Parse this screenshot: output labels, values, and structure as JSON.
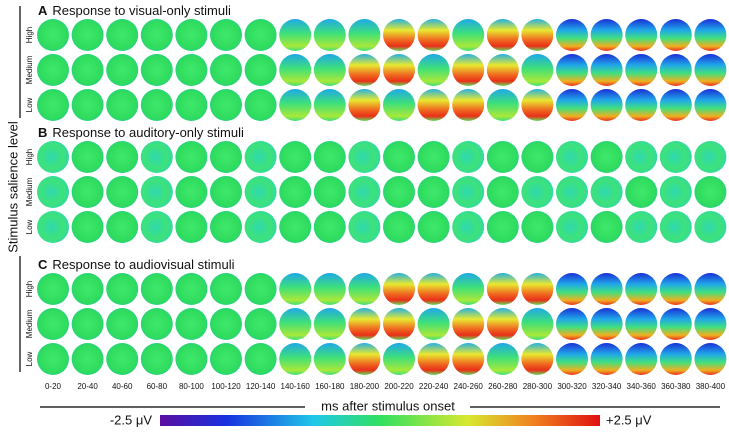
{
  "panels": [
    {
      "letter": "A",
      "title": "Response to visual-only stimuli",
      "rows": [
        "High",
        "Medium",
        "Low"
      ]
    },
    {
      "letter": "B",
      "title": "Response to auditory-only stimuli",
      "rows": [
        "High",
        "Medium",
        "Low"
      ]
    },
    {
      "letter": "C",
      "title": "Response to audiovisual stimuli",
      "rows": [
        "High",
        "Medium",
        "Low"
      ]
    }
  ],
  "time_windows": [
    "0-20",
    "20-40",
    "40-60",
    "60-80",
    "80-100",
    "100-120",
    "120-140",
    "140-160",
    "160-180",
    "180-200",
    "200-220",
    "220-240",
    "240-260",
    "260-280",
    "280-300",
    "300-320",
    "320-340",
    "340-360",
    "360-380",
    "380-400"
  ],
  "y_axis_label": "Stimulus salience level",
  "x_axis_label": "ms after stimulus onset",
  "colorbar": {
    "min_label": "-2.5 μV",
    "max_label": "+2.5 μV"
  }
}
